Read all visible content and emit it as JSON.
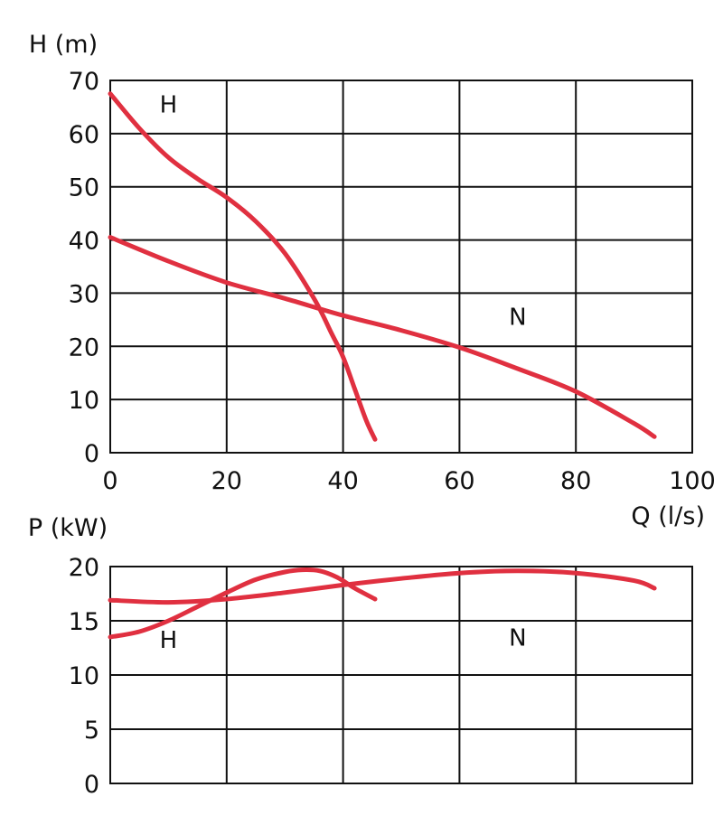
{
  "chart_data": [
    {
      "type": "line",
      "ylabel": "H (m)",
      "xlabel": "Q (l/s)",
      "xlim": [
        0,
        100
      ],
      "ylim": [
        0,
        70
      ],
      "x_ticks": [
        "0",
        "20",
        "40",
        "60",
        "80",
        "100"
      ],
      "y_ticks": [
        "0",
        "10",
        "20",
        "30",
        "40",
        "50",
        "60",
        "70"
      ],
      "grid": true,
      "series": [
        {
          "name": "H",
          "x": [
            0,
            5,
            10,
            15,
            20,
            25,
            30,
            35,
            38,
            40,
            42,
            44,
            45.5
          ],
          "y": [
            67.5,
            61,
            55.5,
            51.5,
            48,
            43.5,
            37.5,
            29,
            22.5,
            18,
            12,
            6,
            2.5
          ]
        },
        {
          "name": "N",
          "x": [
            0,
            10,
            20,
            30,
            40,
            50,
            60,
            70,
            80,
            90,
            93.5
          ],
          "y": [
            40.5,
            36,
            32,
            29,
            25.8,
            23,
            19.8,
            15.8,
            11.5,
            5.5,
            3
          ]
        }
      ],
      "annotations": [
        {
          "text": "H",
          "x": 10,
          "y": 64
        },
        {
          "text": "N",
          "x": 70,
          "y": 24
        }
      ]
    },
    {
      "type": "line",
      "ylabel": "P (kW)",
      "xlabel": "",
      "xlim": [
        0,
        100
      ],
      "ylim": [
        0,
        20
      ],
      "x_ticks": [],
      "y_ticks": [
        "0",
        "5",
        "10",
        "15",
        "20"
      ],
      "grid": true,
      "series": [
        {
          "name": "H",
          "x": [
            0,
            5,
            10,
            15,
            20,
            25,
            30,
            33,
            36,
            39,
            42,
            45.5
          ],
          "y": [
            13.5,
            14.0,
            15.0,
            16.3,
            17.6,
            18.8,
            19.5,
            19.7,
            19.6,
            19.0,
            18.0,
            17.0
          ]
        },
        {
          "name": "N",
          "x": [
            0,
            10,
            20,
            30,
            40,
            50,
            60,
            70,
            80,
            90,
            93.5
          ],
          "y": [
            16.9,
            16.7,
            17.0,
            17.6,
            18.3,
            18.9,
            19.4,
            19.6,
            19.4,
            18.7,
            18.0
          ]
        }
      ],
      "annotations": [
        {
          "text": "H",
          "x": 10,
          "y": 12.5
        },
        {
          "text": "N",
          "x": 70,
          "y": 12.7
        }
      ]
    }
  ],
  "colors": {
    "curve": "#e03040",
    "grid": "#111111",
    "text": "#111111"
  }
}
